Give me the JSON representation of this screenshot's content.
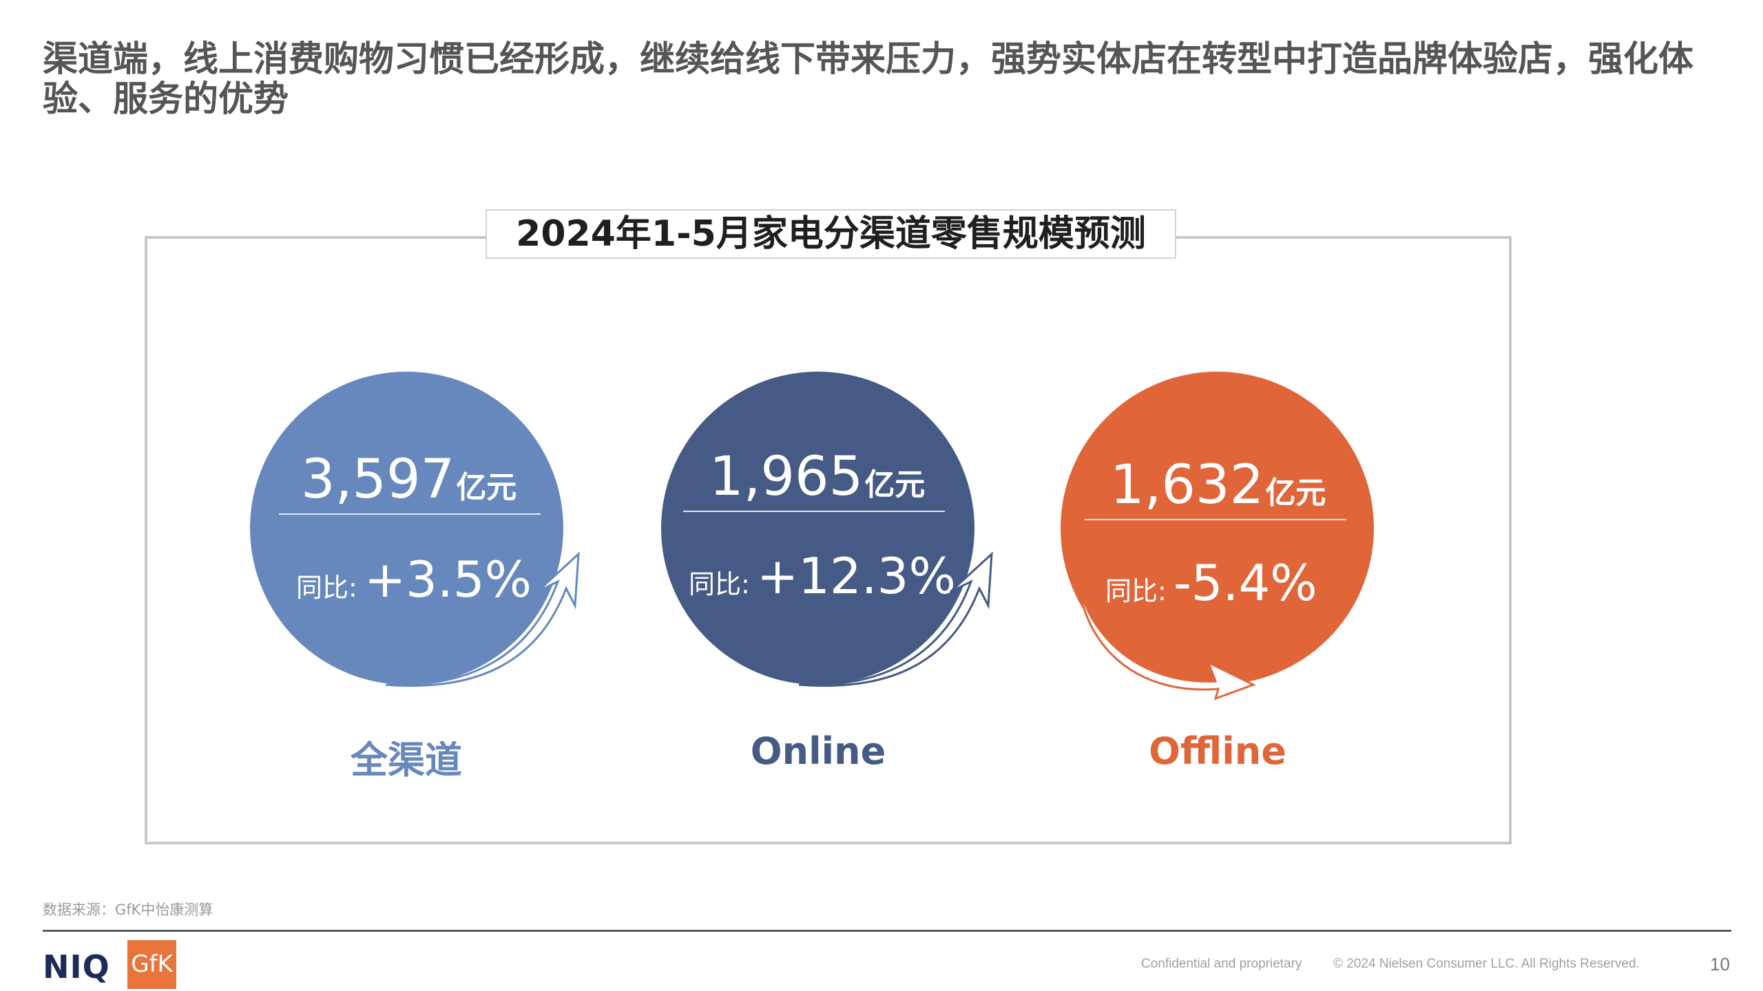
{
  "slide": {
    "title": "渠道端，线上消费购物习惯已经形成，继续给线下带来压力，强势实体店在转型中打造品牌体验店，强化体验、服务的优势"
  },
  "chart": {
    "heading": "2024年1-5月家电分渠道零售规模预测",
    "channels": [
      {
        "label": "全渠道",
        "value": "3,597",
        "unit": "亿元",
        "yoy_label": "同比:",
        "yoy": "+3.5%",
        "trend": "up",
        "color": "#6788bd"
      },
      {
        "label": "Online",
        "value": "1,965",
        "unit": "亿元",
        "yoy_label": "同比:",
        "yoy": "+12.3%",
        "trend": "up",
        "color": "#455a84"
      },
      {
        "label": "Offline",
        "value": "1,632",
        "unit": "亿元",
        "yoy_label": "同比:",
        "yoy": "-5.4%",
        "trend": "down",
        "color": "#e0663a"
      }
    ]
  },
  "source_note": "数据来源：GfK中怡康测算",
  "footer": {
    "logo_niq": "NIQ",
    "logo_gfk": "GfK",
    "confidential": "Confidential and proprietary",
    "copyright": "© 2024 Nielsen Consumer LLC. All Rights Reserved.",
    "page_number": "10"
  }
}
